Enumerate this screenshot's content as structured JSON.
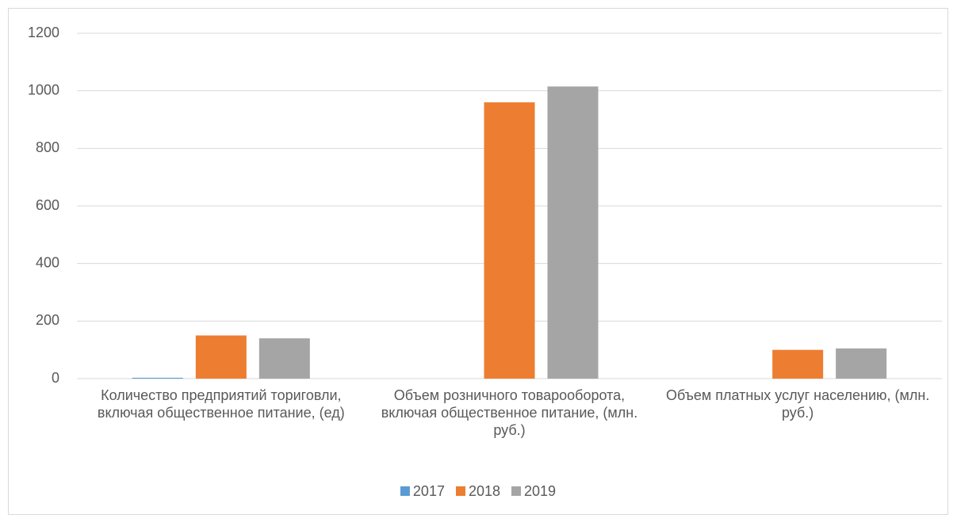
{
  "chart_data": {
    "type": "bar",
    "categories": [
      "Количество предприятий ториговли, включая общественное питание, (ед)",
      "Объем розничного товарооборота, включая общественное питание, (млн. руб.)",
      "Объем платных услуг населению, (млн. руб.)"
    ],
    "series": [
      {
        "name": "2017",
        "color": "#5b9bd5",
        "values": [
          3,
          0,
          0
        ]
      },
      {
        "name": "2018",
        "color": "#ed7d31",
        "values": [
          150,
          960,
          100
        ]
      },
      {
        "name": "2019",
        "color": "#a5a5a5",
        "values": [
          140,
          1015,
          105
        ]
      }
    ],
    "ylim": [
      0,
      1200
    ],
    "yticks": [
      0,
      200,
      400,
      600,
      800,
      1000,
      1200
    ],
    "grid": true,
    "legend": "bottom"
  }
}
